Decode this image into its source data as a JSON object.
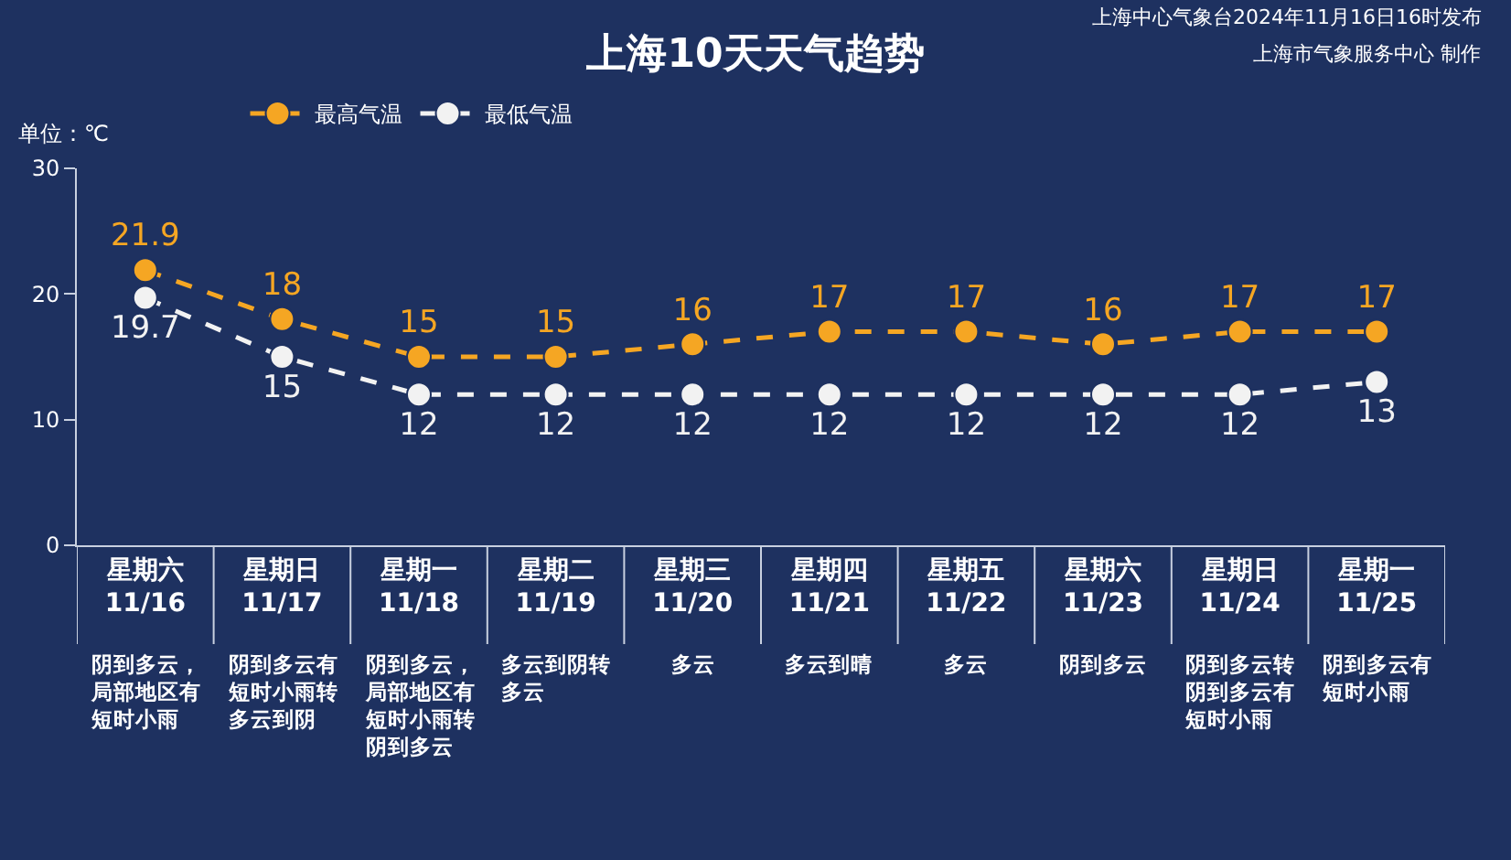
{
  "chart_data": {
    "type": "line",
    "title": "上海10天天气趋势",
    "ylabel": "单位：℃",
    "categories": [
      "星期六\n11/16",
      "星期日\n11/17",
      "星期一\n11/18",
      "星期二\n11/19",
      "星期三\n11/20",
      "星期四\n11/21",
      "星期五\n11/22",
      "星期六\n11/23",
      "星期日\n11/24",
      "星期一\n11/25"
    ],
    "series": [
      {
        "name": "最高气温",
        "color": "#f5a623",
        "values": [
          21.9,
          18,
          15,
          15,
          16,
          17,
          17,
          16,
          17,
          17
        ]
      },
      {
        "name": "最低气温",
        "color": "#f2f2f2",
        "values": [
          19.7,
          15,
          12,
          12,
          12,
          12,
          12,
          12,
          12,
          13
        ]
      }
    ],
    "ylim": [
      0,
      30
    ],
    "yticks": [
      0,
      10,
      20,
      30
    ],
    "grid": false,
    "legend": "top left",
    "marker": "circle",
    "line_style": "dashed",
    "data_labels": true,
    "annotations": [
      "上海中心气象台2024年11月16日16时发布",
      "上海市气象服务中心 制作",
      "阴到多云，局部地区有短时小雨",
      "阴到多云有短时小雨转多云到阴",
      "阴到多云，局部地区有短时小雨转阴到多云",
      "多云到阴转多云",
      "多云",
      "多云到晴",
      "多云",
      "阴到多云",
      "阴到多云转阴到多云有短时小雨",
      "阴到多云有短时小雨"
    ]
  }
}
